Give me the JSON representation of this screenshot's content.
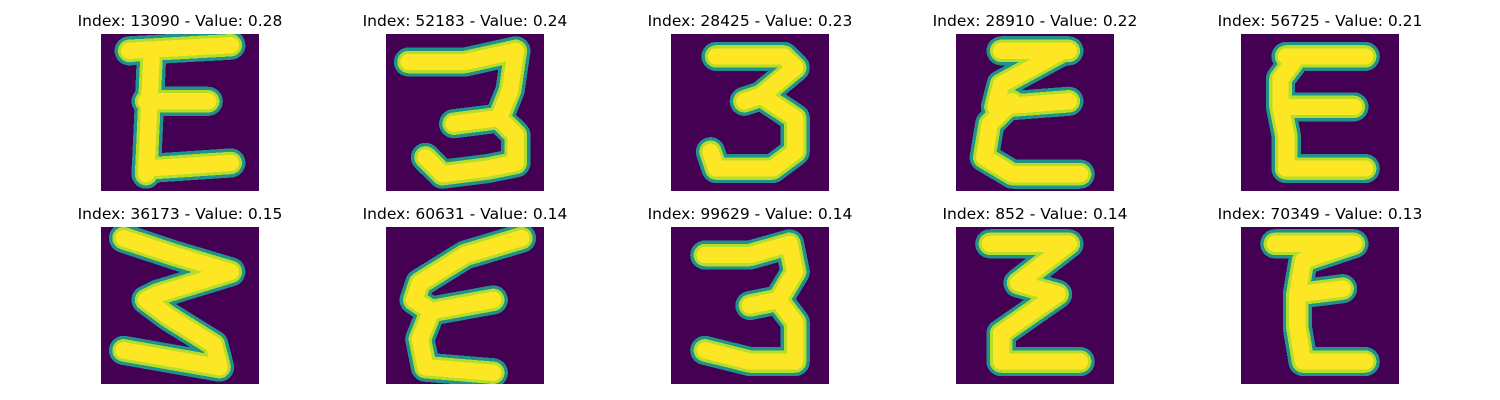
{
  "colors": {
    "background": "#440154",
    "stroke_core": "#FDE725",
    "stroke_mid": "#B5DE2B",
    "stroke_edge": "#21918C"
  },
  "panels": [
    {
      "title": "Index: 13090 - Value: 0.28",
      "glyph": "E"
    },
    {
      "title": "Index: 52183 - Value: 0.24",
      "glyph": "3"
    },
    {
      "title": "Index: 28425 - Value: 0.23",
      "glyph": "3"
    },
    {
      "title": "Index: 28910 - Value: 0.22",
      "glyph": "ε"
    },
    {
      "title": "Index: 56725 - Value: 0.21",
      "glyph": "E"
    },
    {
      "title": "Index: 36173 - Value: 0.15",
      "glyph": "3"
    },
    {
      "title": "Index: 60631 - Value: 0.14",
      "glyph": "ε"
    },
    {
      "title": "Index: 99629 - Value: 0.14",
      "glyph": "3"
    },
    {
      "title": "Index: 852 - Value: 0.14",
      "glyph": "z"
    },
    {
      "title": "Index: 70349 - Value: 0.13",
      "glyph": "E"
    }
  ]
}
